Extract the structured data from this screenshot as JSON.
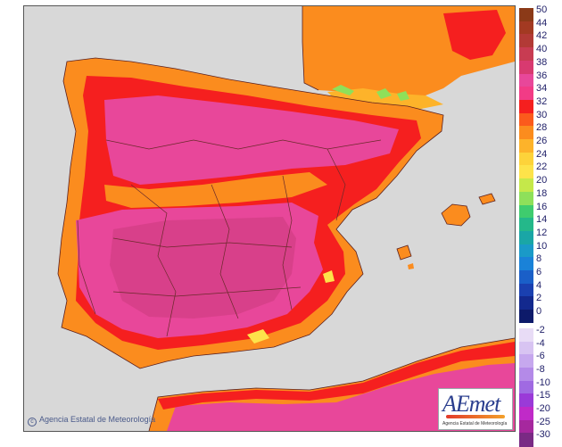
{
  "map": {
    "land_colors": {
      "hot_core": "#e8479a",
      "hot_mid": "#f23b86",
      "red_band": "#f51f1f",
      "orange": "#fb8c1e",
      "light_orange": "#fdb32a",
      "yellow": "#fde34a",
      "green": "#8ee05a",
      "sea": "#d8d8d8",
      "border_line": "#6a2a2a"
    }
  },
  "legend": {
    "entries": [
      {
        "label": "50",
        "color": "#8b3a18"
      },
      {
        "label": "44",
        "color": "#a33a22"
      },
      {
        "label": "42",
        "color": "#b23a36"
      },
      {
        "label": "40",
        "color": "#c83c52"
      },
      {
        "label": "38",
        "color": "#d83a70"
      },
      {
        "label": "36",
        "color": "#e8479a"
      },
      {
        "label": "34",
        "color": "#f23b86"
      },
      {
        "label": "32",
        "color": "#f51f1f"
      },
      {
        "label": "30",
        "color": "#fb5a1c"
      },
      {
        "label": "28",
        "color": "#fb8c1e"
      },
      {
        "label": "26",
        "color": "#fdb32a"
      },
      {
        "label": "24",
        "color": "#fdd33a"
      },
      {
        "label": "22",
        "color": "#fde34a"
      },
      {
        "label": "20",
        "color": "#c5e84a"
      },
      {
        "label": "18",
        "color": "#8ee05a"
      },
      {
        "label": "16",
        "color": "#3fcc6e"
      },
      {
        "label": "14",
        "color": "#24b88a"
      },
      {
        "label": "12",
        "color": "#1aa6a6"
      },
      {
        "label": "10",
        "color": "#1a9ac8"
      },
      {
        "label": "8",
        "color": "#1a82d8"
      },
      {
        "label": "6",
        "color": "#1a5fc8"
      },
      {
        "label": "4",
        "color": "#1a40b0"
      },
      {
        "label": "2",
        "color": "#13298e"
      },
      {
        "label": "0",
        "color": "#0d1a6a"
      },
      {
        "label": "-2",
        "color": "#e8dcf6"
      },
      {
        "label": "-4",
        "color": "#d8c4f2"
      },
      {
        "label": "-6",
        "color": "#c6a8ee"
      },
      {
        "label": "-8",
        "color": "#b48ae8"
      },
      {
        "label": "-10",
        "color": "#a06ae2"
      },
      {
        "label": "-15",
        "color": "#9a3ad8"
      },
      {
        "label": "-20",
        "color": "#c02ac8"
      },
      {
        "label": "-25",
        "color": "#a6289e"
      },
      {
        "label": "-30",
        "color": "#7a2a84"
      }
    ]
  },
  "copyright_text": "Agencia Estatal de Meteorología",
  "logo": {
    "mark": "AEmet",
    "subtitle": "Agencia Estatal de Meteorología"
  }
}
